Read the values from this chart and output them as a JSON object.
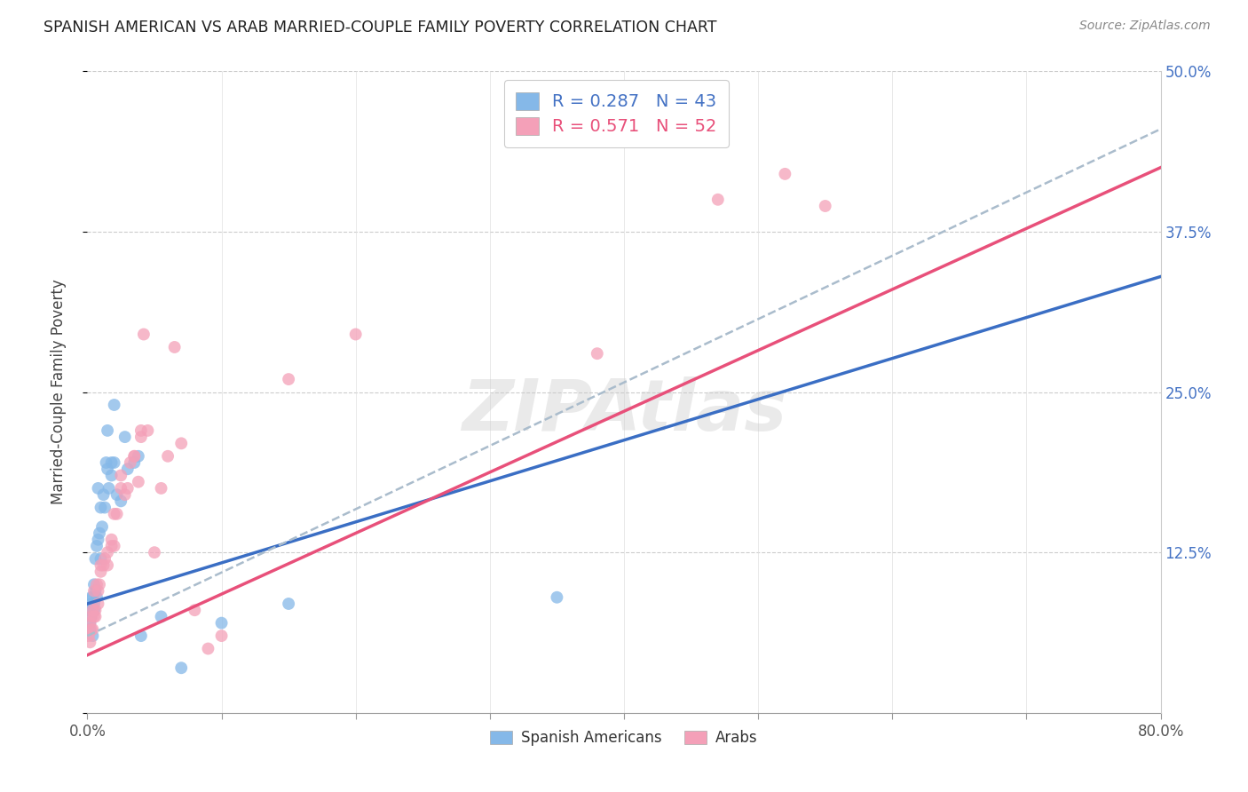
{
  "title": "SPANISH AMERICAN VS ARAB MARRIED-COUPLE FAMILY POVERTY CORRELATION CHART",
  "source": "Source: ZipAtlas.com",
  "ylabel": "Married-Couple Family Poverty",
  "xlim": [
    0.0,
    0.8
  ],
  "ylim": [
    0.0,
    0.5
  ],
  "watermark": "ZIPAtlas",
  "color_blue": "#85B8E8",
  "color_pink": "#F4A0B8",
  "color_blue_line": "#3A6EC4",
  "color_pink_line": "#E8507A",
  "color_dash": "#AABCCC",
  "blue_line_x0": 0.0,
  "blue_line_y0": 0.085,
  "blue_line_x1": 0.8,
  "blue_line_y1": 0.34,
  "pink_line_x0": 0.0,
  "pink_line_y0": 0.045,
  "pink_line_x1": 0.8,
  "pink_line_y1": 0.425,
  "dash_line_x0": 0.0,
  "dash_line_y0": 0.06,
  "dash_line_x1": 0.8,
  "dash_line_y1": 0.455,
  "spanish_x": [
    0.001,
    0.002,
    0.002,
    0.003,
    0.003,
    0.003,
    0.004,
    0.004,
    0.005,
    0.005,
    0.005,
    0.006,
    0.006,
    0.007,
    0.007,
    0.008,
    0.008,
    0.009,
    0.01,
    0.01,
    0.011,
    0.012,
    0.013,
    0.014,
    0.015,
    0.015,
    0.016,
    0.018,
    0.018,
    0.02,
    0.02,
    0.022,
    0.025,
    0.028,
    0.03,
    0.035,
    0.038,
    0.04,
    0.055,
    0.07,
    0.1,
    0.15,
    0.35
  ],
  "spanish_y": [
    0.08,
    0.065,
    0.07,
    0.075,
    0.085,
    0.09,
    0.06,
    0.09,
    0.085,
    0.08,
    0.1,
    0.095,
    0.12,
    0.09,
    0.13,
    0.135,
    0.175,
    0.14,
    0.12,
    0.16,
    0.145,
    0.17,
    0.16,
    0.195,
    0.19,
    0.22,
    0.175,
    0.185,
    0.195,
    0.195,
    0.24,
    0.17,
    0.165,
    0.215,
    0.19,
    0.195,
    0.2,
    0.06,
    0.075,
    0.035,
    0.07,
    0.085,
    0.09
  ],
  "arab_x": [
    0.001,
    0.002,
    0.002,
    0.003,
    0.003,
    0.004,
    0.004,
    0.005,
    0.005,
    0.006,
    0.006,
    0.007,
    0.008,
    0.008,
    0.009,
    0.01,
    0.01,
    0.012,
    0.013,
    0.015,
    0.015,
    0.018,
    0.018,
    0.02,
    0.02,
    0.022,
    0.025,
    0.025,
    0.028,
    0.03,
    0.032,
    0.035,
    0.035,
    0.038,
    0.04,
    0.04,
    0.042,
    0.045,
    0.05,
    0.055,
    0.06,
    0.065,
    0.07,
    0.08,
    0.09,
    0.1,
    0.15,
    0.2,
    0.38,
    0.47,
    0.52,
    0.55
  ],
  "arab_y": [
    0.06,
    0.055,
    0.07,
    0.065,
    0.075,
    0.065,
    0.08,
    0.075,
    0.095,
    0.075,
    0.08,
    0.1,
    0.085,
    0.095,
    0.1,
    0.11,
    0.115,
    0.115,
    0.12,
    0.125,
    0.115,
    0.13,
    0.135,
    0.13,
    0.155,
    0.155,
    0.175,
    0.185,
    0.17,
    0.175,
    0.195,
    0.2,
    0.2,
    0.18,
    0.215,
    0.22,
    0.295,
    0.22,
    0.125,
    0.175,
    0.2,
    0.285,
    0.21,
    0.08,
    0.05,
    0.06,
    0.26,
    0.295,
    0.28,
    0.4,
    0.42,
    0.395
  ]
}
